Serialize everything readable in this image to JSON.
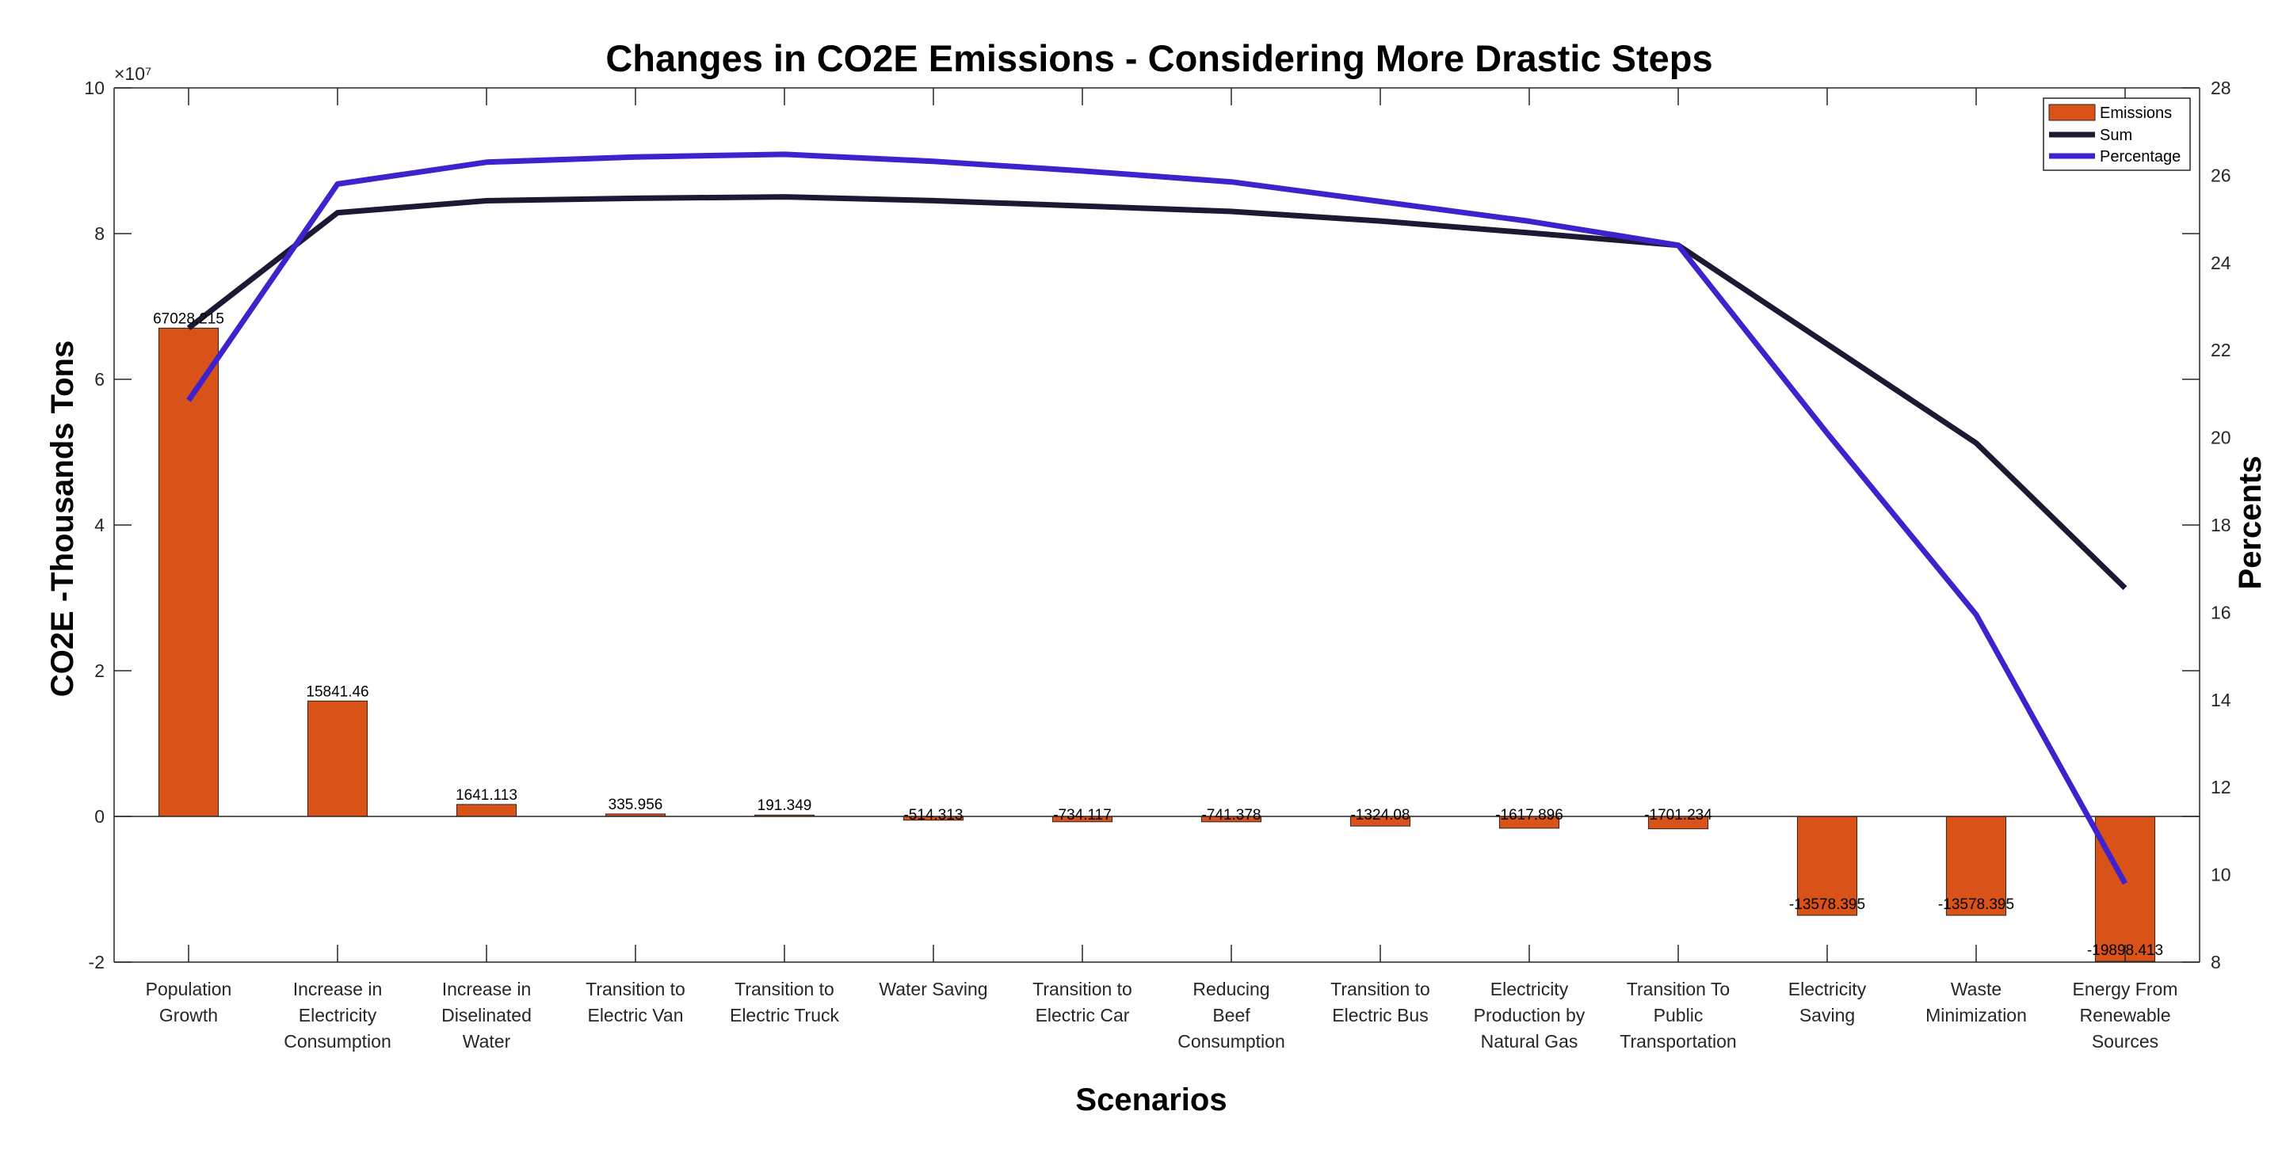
{
  "chart_data": {
    "type": "bar",
    "title": "Changes in CO2E Emissions - Considering More Drastic Steps",
    "xlabel": "Scenarios",
    "ylabel": "CO2E -Thousands Tons",
    "ylabel_right": "Percents",
    "exponent_label": "×10⁷",
    "ylim": [
      -20000000,
      100000000
    ],
    "ylim_right": [
      8,
      28
    ],
    "y_ticks": [
      -2,
      0,
      2,
      4,
      6,
      8,
      10
    ],
    "y_ticks_right": [
      8,
      10,
      12,
      14,
      16,
      18,
      20,
      22,
      24,
      26,
      28
    ],
    "grid": false,
    "legend_position": "top-right",
    "categories": [
      [
        "Population",
        "Growth"
      ],
      [
        "Increase in",
        "Electricity",
        "Consumption"
      ],
      [
        "Increase in",
        "Diselinated",
        "Water"
      ],
      [
        "Transition to",
        "Electric Van"
      ],
      [
        "Transition to",
        "Electric Truck"
      ],
      [
        "Water Saving"
      ],
      [
        "Transition to",
        "Electric Car"
      ],
      [
        "Reducing",
        "Beef",
        "Consumption"
      ],
      [
        "Transition to",
        "Electric Bus"
      ],
      [
        "Electricity",
        "Production by",
        "Natural Gas"
      ],
      [
        "Transition To",
        "Public",
        "Transportation"
      ],
      [
        "Electricity",
        "Saving"
      ],
      [
        "Waste",
        "Minimization"
      ],
      [
        "Energy From",
        "Renewable",
        "Sources"
      ]
    ],
    "series": [
      {
        "name": "Emissions",
        "axis": "left",
        "style": "bar",
        "color": "#D95319",
        "values": [
          67028215,
          15841460,
          1641113,
          335956,
          191349,
          -514313,
          -734117,
          -741378,
          -1324080,
          -1617896,
          -1701234,
          -13578395,
          -13578395,
          -19898413
        ],
        "labels": [
          "67028.215",
          "15841.46",
          "1641.113",
          "335.956",
          "191.349",
          "-514.313",
          "-734.117",
          "-741.378",
          "-1324.08",
          "-1617.896",
          "-1701.234",
          "-13578.395",
          "-13578.395",
          "-19898.413"
        ]
      },
      {
        "name": "Sum",
        "axis": "left",
        "style": "line",
        "color": "#1C1A33",
        "values": [
          67028215,
          82869675,
          84510788,
          84846744,
          85038093,
          84523780,
          83789663,
          83048285,
          81724205,
          80106309,
          78405075,
          64826680,
          51248285,
          31349872
        ]
      },
      {
        "name": "Percentage",
        "axis": "right",
        "style": "line",
        "color": "#3F22CC",
        "values": [
          20.85,
          25.8,
          26.3,
          26.42,
          26.48,
          26.32,
          26.1,
          25.85,
          25.4,
          24.95,
          24.4,
          20.1,
          15.95,
          9.8
        ]
      }
    ]
  }
}
